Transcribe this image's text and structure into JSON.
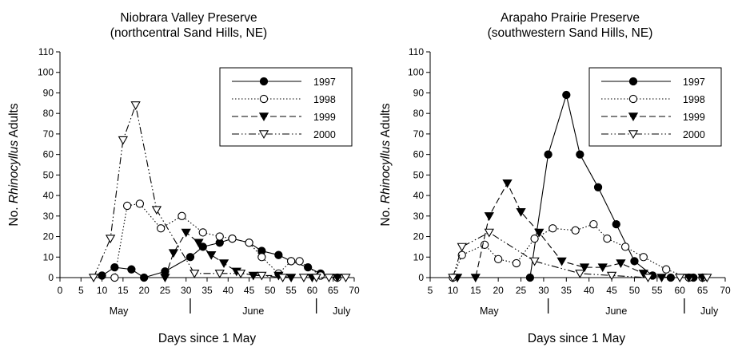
{
  "ylabel_parts": [
    "No. ",
    "Rhinocyllus",
    " Adults"
  ],
  "chart_data": [
    {
      "type": "line",
      "title_lines": [
        "Niobrara Valley Preserve",
        "(northcentral Sand Hills, NE)"
      ],
      "xlabel": "Days since 1 May",
      "ylabel": "No. Rhinocyllus Adults",
      "xlim": [
        0,
        70
      ],
      "ylim": [
        0,
        110
      ],
      "xticks": [
        0,
        5,
        10,
        15,
        20,
        25,
        30,
        35,
        40,
        45,
        50,
        55,
        60,
        65,
        70
      ],
      "yticks": [
        0,
        10,
        20,
        30,
        40,
        50,
        60,
        70,
        80,
        90,
        100,
        110
      ],
      "months": [
        {
          "label": "May",
          "x": 14
        },
        {
          "label": "June",
          "x": 46
        },
        {
          "label": "July",
          "x": 67
        }
      ],
      "month_separators": [
        31,
        61
      ],
      "legend_position": "top-right",
      "series": [
        {
          "name": "1997",
          "line": "solid",
          "marker": "filled-circle",
          "x": [
            10,
            13,
            17,
            20,
            25,
            31,
            34,
            38,
            41,
            45,
            48,
            52,
            55,
            59,
            62
          ],
          "y": [
            1,
            5,
            4,
            0,
            3,
            10,
            15,
            17,
            19,
            17,
            13,
            11,
            8,
            5,
            2
          ]
        },
        {
          "name": "1998",
          "line": "dotted",
          "marker": "open-circle",
          "x": [
            13,
            16,
            19,
            24,
            29,
            34,
            38,
            41,
            45,
            48,
            52,
            55,
            57,
            62,
            66
          ],
          "y": [
            0,
            35,
            36,
            24,
            30,
            22,
            20,
            19,
            17,
            10,
            2,
            8,
            8,
            1,
            0
          ]
        },
        {
          "name": "1999",
          "line": "dashed",
          "marker": "filled-triangle-down",
          "x": [
            25,
            27,
            30,
            33,
            36,
            39,
            42,
            46,
            52,
            55,
            60,
            66
          ],
          "y": [
            0,
            12,
            22,
            17,
            11,
            7,
            3,
            1,
            1,
            0,
            0,
            0
          ]
        },
        {
          "name": "2000",
          "line": "dash-dot-dot",
          "marker": "open-triangle-down",
          "x": [
            8,
            12,
            15,
            18,
            23,
            32,
            38,
            43,
            48,
            53,
            58,
            61,
            64,
            68
          ],
          "y": [
            0,
            19,
            67,
            84,
            33,
            2,
            2,
            2,
            1,
            0,
            0,
            0,
            0,
            0
          ]
        }
      ]
    },
    {
      "type": "line",
      "title_lines": [
        "Arapaho Prairie Preserve",
        "(southwestern Sand Hills, NE)"
      ],
      "xlabel": "Days since 1 May",
      "ylabel": "No. Rhinocyllus Adults",
      "xlim": [
        5,
        70
      ],
      "ylim": [
        0,
        110
      ],
      "xticks": [
        5,
        10,
        15,
        20,
        25,
        30,
        35,
        40,
        45,
        50,
        55,
        60,
        65,
        70
      ],
      "yticks": [
        0,
        10,
        20,
        30,
        40,
        50,
        60,
        70,
        80,
        90,
        100,
        110
      ],
      "months": [
        {
          "label": "May",
          "x": 18
        },
        {
          "label": "June",
          "x": 46
        },
        {
          "label": "July",
          "x": 66.5
        }
      ],
      "month_separators": [
        31,
        61
      ],
      "legend_position": "top-right",
      "series": [
        {
          "name": "1997",
          "line": "solid",
          "marker": "filled-circle",
          "x": [
            27,
            31,
            35,
            38,
            42,
            46,
            50,
            54,
            58,
            63,
            65
          ],
          "y": [
            0,
            60,
            89,
            60,
            44,
            26,
            8,
            1,
            0,
            0,
            0
          ]
        },
        {
          "name": "1998",
          "line": "dotted",
          "marker": "open-circle",
          "x": [
            10,
            12,
            17,
            20,
            24,
            28,
            32,
            37,
            41,
            44,
            48,
            52,
            57,
            62,
            65
          ],
          "y": [
            0,
            11,
            16,
            9,
            7,
            19,
            24,
            23,
            26,
            19,
            15,
            10,
            4,
            0,
            0
          ]
        },
        {
          "name": "1999",
          "line": "dashed",
          "marker": "filled-triangle-down",
          "x": [
            11,
            15,
            18,
            22,
            25,
            29,
            34,
            39,
            43,
            47,
            52,
            56,
            62,
            65
          ],
          "y": [
            0,
            0,
            30,
            46,
            32,
            22,
            8,
            5,
            5,
            7,
            2,
            0,
            0,
            0
          ]
        },
        {
          "name": "2000",
          "line": "dash-dot-dot",
          "marker": "open-triangle-down",
          "x": [
            10,
            12,
            18,
            28,
            38,
            45,
            53,
            60,
            66
          ],
          "y": [
            0,
            15,
            22,
            8,
            2,
            1,
            0,
            0,
            0
          ]
        }
      ]
    }
  ]
}
